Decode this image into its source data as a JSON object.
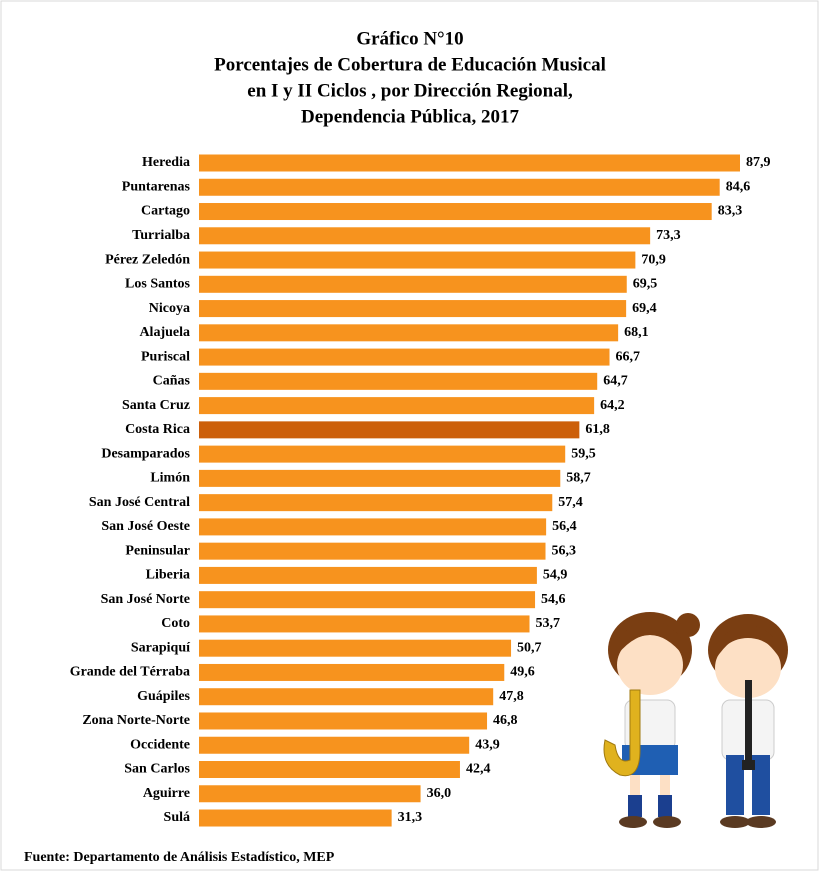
{
  "chart_data": {
    "type": "hbar",
    "title": [
      "Gráfico N°10",
      "Porcentajes de Cobertura de Educación Musical",
      "en I y II Ciclos , por Dirección Regional,",
      "Dependencia Pública,  2017"
    ],
    "categories": [
      "Heredia",
      "Puntarenas",
      "Cartago",
      "Turrialba",
      "Pérez Zeledón",
      "Los Santos",
      "Nicoya",
      "Alajuela",
      "Puriscal",
      "Cañas",
      "Santa Cruz",
      "Costa Rica",
      "Desamparados",
      "Limón",
      "San José Central",
      "San José Oeste",
      "Peninsular",
      "Liberia",
      "San José Norte",
      "Coto",
      "Sarapiquí",
      "Grande del Térraba",
      "Guápiles",
      "Zona Norte-Norte",
      "Occidente",
      "San Carlos",
      "Aguirre",
      "Sulá"
    ],
    "values": [
      87.9,
      84.6,
      83.3,
      73.3,
      70.9,
      69.5,
      69.4,
      68.1,
      66.7,
      64.7,
      64.2,
      61.8,
      59.5,
      58.7,
      57.4,
      56.4,
      56.3,
      54.9,
      54.6,
      53.7,
      50.7,
      49.6,
      47.8,
      46.8,
      43.9,
      42.4,
      36.0,
      31.3
    ],
    "value_labels": [
      "87,9",
      "84,6",
      "83,3",
      "73,3",
      "70,9",
      "69,5",
      "69,4",
      "68,1",
      "66,7",
      "64,7",
      "64,2",
      "61,8",
      "59,5",
      "58,7",
      "57,4",
      "56,4",
      "56,3",
      "54,9",
      "54,6",
      "53,7",
      "50,7",
      "49,6",
      "47,8",
      "46,8",
      "43,9",
      "42,4",
      "36,0",
      "31,3"
    ],
    "colors": [
      "#F7931E",
      "#F7931E",
      "#F7931E",
      "#F7931E",
      "#F7931E",
      "#F7931E",
      "#F7931E",
      "#F7931E",
      "#F7931E",
      "#F7931E",
      "#F7931E",
      "#CC5F0A",
      "#F7931E",
      "#F7931E",
      "#F7931E",
      "#F7931E",
      "#F7931E",
      "#F7931E",
      "#F7931E",
      "#F7931E",
      "#F7931E",
      "#F7931E",
      "#F7931E",
      "#F7931E",
      "#F7931E",
      "#F7931E",
      "#F7931E",
      "#F7931E"
    ],
    "source": "Fuente: Departamento de Análisis Estadístico, MEP"
  }
}
